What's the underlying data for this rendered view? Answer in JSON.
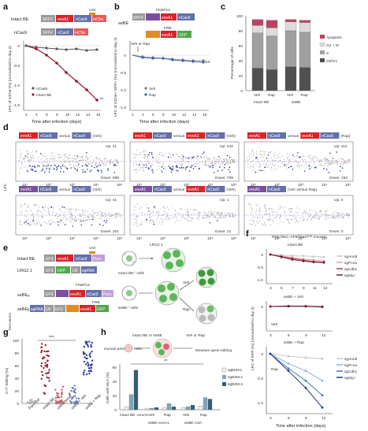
{
  "colors": {
    "evoA1": "#d8232a",
    "nCas9": "#6470a8",
    "mChe": "#e45a5a",
    "grey_box": "#9a9a9a",
    "green": "#4fa84a",
    "purple": "#7b4ea0",
    "orange": "#e08a28",
    "intact": "#9b1b30",
    "ncas9_line": "#555555",
    "veh_line": "#777777",
    "rap_line": "#3f5fa8",
    "apoptotic": "#c04060",
    "g2m": "#dcdcdc",
    "s": "#a0a0a0",
    "g0g1": "#505050",
    "sgAno9": "#c9c9c9",
    "sgPcna": "#e8a0a8",
    "sgCdk1": "#b04058",
    "sgMyc": "#6a1b2e",
    "sgPcna_rap": "#8fb3e0",
    "sgCdk1_rap": "#4a79c0",
    "sgMyc_rap": "#1f3d7a",
    "lilac": "#c8a0e8",
    "teal": "#3d7a8c"
  },
  "panels": {
    "a": "a",
    "b": "b",
    "c": "c",
    "d": "d",
    "e": "e",
    "f": "f",
    "g": "g",
    "h": "h"
  },
  "a": {
    "construct1_label": "Intact BE",
    "construct2_label": "nCas9",
    "boxes1": [
      "SFFV",
      "evoA1",
      "nCas9",
      "mChe"
    ],
    "ugi": "UGI",
    "boxes2": [
      "SFFV",
      "nCas9",
      "mChe"
    ],
    "ylabel": "LFC of mChe (%) (normalized to day 2)",
    "xlabel": "Time after infection (days)",
    "xticks": [
      "2",
      "4",
      "6",
      "8",
      "10",
      "12",
      "14",
      "16"
    ],
    "yticks": [
      "0",
      "-0.5",
      "-1.0",
      "-1.5"
    ],
    "legend": [
      "nCas9",
      "Intact BE"
    ],
    "sig": "**"
  },
  "b": {
    "construct_label": "seBE",
    "boxes1": [
      "SFFV",
      "evoA1",
      "nCas9"
    ],
    "fkbp": "FKBP12",
    "frb": "FRB",
    "boxes2": [
      "evoA1",
      "GFP"
    ],
    "veh_rap": "Veh or Rap",
    "ylabel": "LFC of mChe+ GFP+ (%) (normalized to day 2)",
    "xlabel": "Time after infection (days)",
    "xticks": [
      "2",
      "4",
      "6",
      "8",
      "10",
      "12",
      "14",
      "16"
    ],
    "yticks": [
      "0",
      "-0.5",
      "-1.0",
      "-1.5"
    ],
    "legend": [
      "Veh",
      "Rap"
    ],
    "ns": "NS"
  },
  "c": {
    "ylabel": "Percentage of cells",
    "yticks": [
      "0",
      "20",
      "40",
      "60",
      "80",
      "100"
    ],
    "groups": [
      "Intact BE",
      "seBE"
    ],
    "bar_labels": [
      "Veh",
      "Rap",
      "Veh",
      "Rap"
    ],
    "legend": [
      "Apoptotic",
      "G2 + M",
      "S",
      "G0/G1"
    ]
  },
  "chart_c": {
    "type": "bar",
    "categories": [
      "Intact BE Veh",
      "Intact BE Rap",
      "seBE Veh",
      "seBE Rap"
    ],
    "series": [
      {
        "name": "G0/G1",
        "values": [
          30,
          28,
          32,
          31
        ]
      },
      {
        "name": "S",
        "values": [
          47,
          45,
          48,
          47
        ]
      },
      {
        "name": "G2 + M",
        "values": [
          10,
          11,
          12,
          13
        ]
      },
      {
        "name": "Apoptotic",
        "values": [
          8,
          10,
          3,
          3
        ]
      }
    ]
  },
  "d": {
    "ylabel": "LFC",
    "xtick_labels": [
      "10¹",
      "10²",
      "10³",
      "10⁴",
      "10⁵"
    ],
    "panels": [
      {
        "title": "evoA1 nCas9 versus nCas9 (Veh)",
        "up": "Up: 41",
        "down": "Down: 898"
      },
      {
        "title": "evoA1 nCas9 versus evoA1 nCas9 (Veh)",
        "up": "Up: 242",
        "down": "Down: 708"
      },
      {
        "title": "evoA1 nCas9 versus evoA1 nCas9 (Rap)",
        "up": "Up: 113",
        "down": "Down: 152"
      },
      {
        "title": "evoA1 nCas9 versus nCas9 (Veh)",
        "up": "Up: 41",
        "down": "Down: 201"
      },
      {
        "title": "evoA1 nCas9 versus evoA1 nCas9 (Veh)",
        "up": "Up: 1",
        "down": "Down: 21"
      },
      {
        "title": "evoA1 nCas9 (Veh versus Rap)",
        "up": "Up: 0",
        "down": "Down: 0"
      }
    ],
    "versus": "versus",
    "veh": "(Veh)",
    "rap": "(Rap)",
    "veh_vs_rap": "(Veh versus Rap)"
  },
  "e": {
    "intact": "Intact BE",
    "lrg": "LRG2.1",
    "two_vector": "Two-vector",
    "sebe_a": "seBEₐ",
    "sebe_b": "seBEᵦ",
    "boxes_intact": [
      "EFS",
      "evoA1",
      "nCas9",
      "Puro"
    ],
    "ugi": "UGI",
    "boxes_lrg": [
      "EFS",
      "GFP",
      "U6",
      "sgRNA"
    ],
    "fkbp": "FKBP12",
    "boxes_sa": [
      "EFS",
      "evoA1",
      "nCas9",
      "Puro"
    ],
    "boxes_sb": [
      "sgRNA",
      "U6",
      "EFS",
      "evoA1",
      "GFP"
    ],
    "frb": "FRB",
    "cells_intact": "Intact BE⁺ cells",
    "cells_sebe": "seBE⁺ cells",
    "lrg_cells": "LRG2.1",
    "veh": "Veh",
    "rap": "Rap"
  },
  "f": {
    "title": "RN2 (MLL-AF9/Nrasᴳ¹²ᴰ mouse)",
    "sub1": "Intact BE",
    "sub2": "seBE + Veh",
    "sub3": "seBE + Rap",
    "legend": [
      "sgAno9",
      "sgPcna",
      "sgCdk1",
      "sgMyc"
    ],
    "ylabel": "LFC of GFP (%) (normalized to day 3)",
    "xlabel": "Time after infection (days)",
    "xticks1": [
      "3",
      "5",
      "7",
      "9",
      "11",
      "13"
    ],
    "xticks2": [
      "3",
      "6",
      "9",
      "12"
    ],
    "yticks": [
      "0",
      "-0.5",
      "-1.0"
    ],
    "veh": "Veh",
    "rap": "Rap"
  },
  "g": {
    "ylabel": "C>T editing (%)",
    "yticks": [
      "0",
      "20",
      "40",
      "60",
      "80",
      "100"
    ],
    "categories": [
      "Parental",
      "Intact BE",
      "seBE basal",
      "seBE + Veh",
      "seBE + Rap"
    ],
    "sig": "***"
  },
  "h": {
    "human": "Human primary T cells",
    "choice": "Intact BE or seBE",
    "vehrap": "Veh or Rap",
    "measure": "Measure gene editing",
    "ylabel": "Cells with HLA (%)",
    "yticks": [
      "0",
      "20",
      "40",
      "60"
    ],
    "xlabels": [
      "Intact BE -evoA1",
      "Veh",
      "Rap",
      "Veh",
      "Rap"
    ],
    "group1": "seBE-evoA1",
    "group2": "seBE-A3A",
    "legend": [
      "sgEMX1",
      "sgB2M-1",
      "sgB2M-2"
    ],
    "sig": "**"
  }
}
